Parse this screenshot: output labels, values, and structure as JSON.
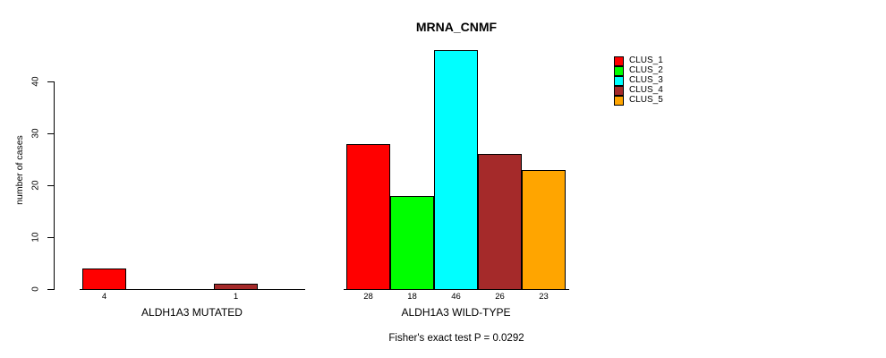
{
  "title": "MRNA_CNMF",
  "chart_data": {
    "type": "bar",
    "title": "MRNA_CNMF",
    "ylabel": "number of cases",
    "yticks": [
      0,
      10,
      20,
      30,
      40
    ],
    "ylim": [
      0,
      46
    ],
    "grid": false,
    "legend_position": "right",
    "clusters": [
      {
        "name": "CLUS_1",
        "color": "#ff0000"
      },
      {
        "name": "CLUS_2",
        "color": "#00ff00"
      },
      {
        "name": "CLUS_3",
        "color": "#00ffff"
      },
      {
        "name": "CLUS_4",
        "color": "#a52a2a"
      },
      {
        "name": "CLUS_5",
        "color": "#ffa500"
      }
    ],
    "groups": [
      {
        "label": "ALDH1A3 MUTATED",
        "values": [
          4,
          0,
          0,
          1,
          0
        ]
      },
      {
        "label": "ALDH1A3 WILD-TYPE",
        "values": [
          28,
          18,
          46,
          26,
          23
        ]
      }
    ],
    "footnote": "Fisher's exact test P = 0.0292",
    "axis_color": "#000000"
  }
}
